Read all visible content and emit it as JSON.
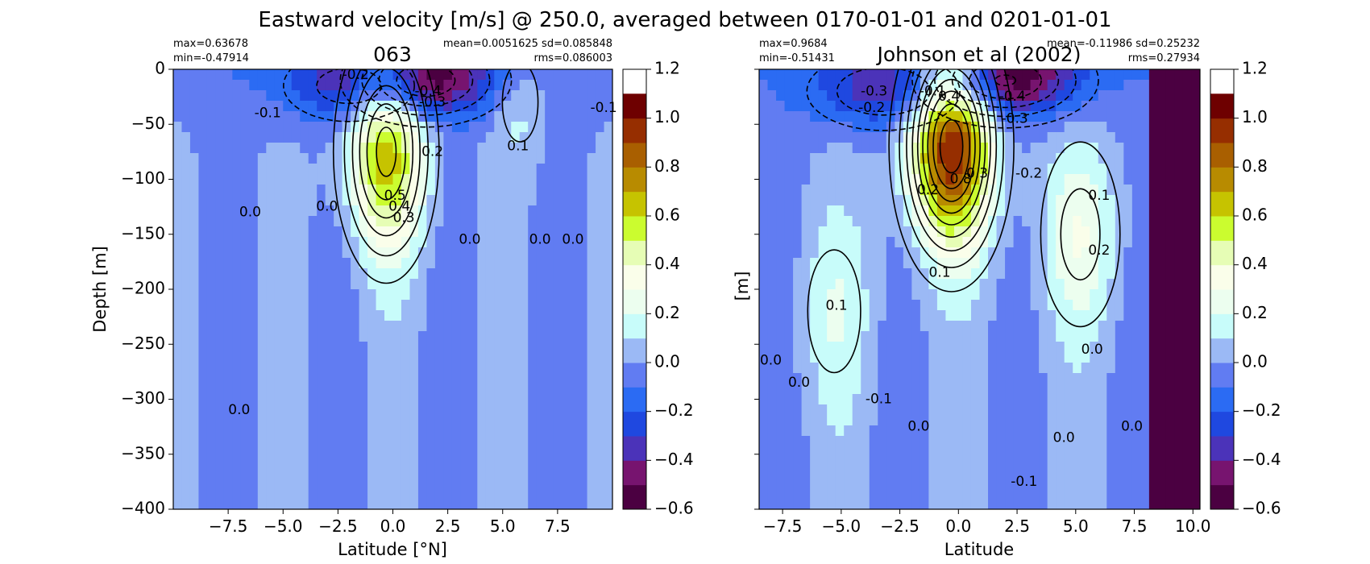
{
  "figure": {
    "title": "Eastward velocity [m/s] @ 250.0, averaged between 0170-01-01 and 0201-01-01"
  },
  "chart_data": [
    {
      "type": "heatmap",
      "title": "063",
      "xlabel": "Latitude [°N]",
      "ylabel": "Depth [m]",
      "xlim": [
        -10,
        10
      ],
      "ylim": [
        -400,
        0
      ],
      "xticks": [
        -7.5,
        -5.0,
        -2.5,
        0.0,
        2.5,
        5.0,
        7.5
      ],
      "xtick_labels": [
        "−7.5",
        "−5.0",
        "−2.5",
        "0.0",
        "2.5",
        "5.0",
        "7.5"
      ],
      "yticks": [
        0,
        -50,
        -100,
        -150,
        -200,
        -250,
        -300,
        -350,
        -400
      ],
      "ytick_labels": [
        "0",
        "−50",
        "−100",
        "−150",
        "−200",
        "−250",
        "−300",
        "−350",
        "−400"
      ],
      "stats_left": [
        "max=0.63678",
        "min=-0.47914"
      ],
      "stats_right": [
        "mean=0.0051625 sd=0.085848",
        "rms=0.086003"
      ],
      "features": [
        {
          "type": "jet",
          "lat": -0.3,
          "depth": -75,
          "max": 0.64
        },
        {
          "type": "jet",
          "lat": 5.8,
          "depth": -30,
          "max": 0.15
        },
        {
          "type": "westward",
          "lat": 1.5,
          "depth": -10,
          "min": -0.48
        },
        {
          "type": "westward",
          "lat": -2.0,
          "depth": -15,
          "min": -0.25
        }
      ],
      "contour_labels": [
        {
          "text": "-0.2",
          "lat": -1.7,
          "depth": -5
        },
        {
          "text": "-0.4",
          "lat": 1.6,
          "depth": -20
        },
        {
          "text": "-0.3",
          "lat": 1.8,
          "depth": -30
        },
        {
          "text": "-0.1",
          "lat": -5.7,
          "depth": -40
        },
        {
          "text": "-0.1",
          "lat": 9.6,
          "depth": -35
        },
        {
          "text": "0.1",
          "lat": 5.7,
          "depth": -70
        },
        {
          "text": "0.2",
          "lat": 1.8,
          "depth": -75
        },
        {
          "text": "0.5",
          "lat": 0.1,
          "depth": -115
        },
        {
          "text": "0.4",
          "lat": 0.3,
          "depth": -125
        },
        {
          "text": "0.3",
          "lat": 0.5,
          "depth": -135
        },
        {
          "text": "0.0",
          "lat": -3.0,
          "depth": -125
        },
        {
          "text": "0.0",
          "lat": -6.5,
          "depth": -130
        },
        {
          "text": "0.0",
          "lat": 3.5,
          "depth": -155
        },
        {
          "text": "0.0",
          "lat": 6.7,
          "depth": -155
        },
        {
          "text": "0.0",
          "lat": 8.2,
          "depth": -155
        },
        {
          "text": "0.0",
          "lat": -7.0,
          "depth": -310
        }
      ]
    },
    {
      "type": "heatmap",
      "title": "Johnson et al (2002)",
      "xlabel": "Latitude",
      "ylabel": "[m]",
      "xlim": [
        -8.5,
        10.3
      ],
      "ylim": [
        -400,
        0
      ],
      "xticks": [
        -7.5,
        -5.0,
        -2.5,
        0.0,
        2.5,
        5.0,
        7.5,
        10.0
      ],
      "xtick_labels": [
        "−7.5",
        "−5.0",
        "−2.5",
        "0.0",
        "2.5",
        "5.0",
        "7.5",
        "10.0"
      ],
      "yticks": [
        0,
        -50,
        -100,
        -150,
        -200,
        -250,
        -300,
        -350,
        -400
      ],
      "ytick_labels": [],
      "no_data_lat_min": 8.2,
      "stats_left": [
        "max=0.9684",
        "min=-0.51431"
      ],
      "stats_right": [
        "mean=-0.11986 sd=0.25232",
        "rms=0.27934"
      ],
      "features": [
        {
          "type": "jet",
          "lat": -0.3,
          "depth": -70,
          "max": 0.97
        },
        {
          "type": "jet",
          "lat": 5.2,
          "depth": -150,
          "max": 0.25
        },
        {
          "type": "jet",
          "lat": -5.3,
          "depth": -220,
          "max": 0.15
        },
        {
          "type": "westward",
          "lat": 2.0,
          "depth": -10,
          "min": -0.51
        },
        {
          "type": "westward",
          "lat": -3.2,
          "depth": -20,
          "min": -0.3
        }
      ],
      "contour_labels": [
        {
          "text": "-0.3",
          "lat": -3.6,
          "depth": -20
        },
        {
          "text": "-0.2",
          "lat": -3.7,
          "depth": -35
        },
        {
          "text": "-0.1",
          "lat": -1.1,
          "depth": -20
        },
        {
          "text": "0.4",
          "lat": -0.4,
          "depth": -25
        },
        {
          "text": "-0.4",
          "lat": 2.3,
          "depth": -25
        },
        {
          "text": "-0.3",
          "lat": 2.4,
          "depth": -45
        },
        {
          "text": "0.8",
          "lat": 0.1,
          "depth": -100
        },
        {
          "text": "0.3",
          "lat": 0.8,
          "depth": -95
        },
        {
          "text": "0.2",
          "lat": -1.3,
          "depth": -110
        },
        {
          "text": "-0.2",
          "lat": 3.0,
          "depth": -95
        },
        {
          "text": "0.1",
          "lat": 6.0,
          "depth": -115
        },
        {
          "text": "0.2",
          "lat": 6.0,
          "depth": -165
        },
        {
          "text": "0.1",
          "lat": -0.8,
          "depth": -185
        },
        {
          "text": "0.1",
          "lat": -5.2,
          "depth": -215
        },
        {
          "text": "0.0",
          "lat": -8.0,
          "depth": -265
        },
        {
          "text": "0.0",
          "lat": -6.8,
          "depth": -285
        },
        {
          "text": "0.0",
          "lat": 5.7,
          "depth": -255
        },
        {
          "text": "-0.1",
          "lat": -3.4,
          "depth": -300
        },
        {
          "text": "0.0",
          "lat": -1.7,
          "depth": -325
        },
        {
          "text": "0.0",
          "lat": 4.5,
          "depth": -335
        },
        {
          "text": "0.0",
          "lat": 7.4,
          "depth": -325
        },
        {
          "text": "-0.1",
          "lat": 2.8,
          "depth": -375
        }
      ]
    }
  ],
  "colorbar": {
    "ticks": [
      1.2,
      1.0,
      0.8,
      0.6,
      0.4,
      0.2,
      0.0,
      -0.2,
      -0.4,
      -0.6
    ],
    "tick_labels": [
      "1.2",
      "1.0",
      "0.8",
      "0.6",
      "0.4",
      "0.2",
      "0.0",
      "−0.2",
      "−0.4",
      "−0.6"
    ],
    "levels": [
      -0.6,
      -0.5,
      -0.4,
      -0.3,
      -0.2,
      -0.1,
      0.0,
      0.1,
      0.2,
      0.3,
      0.4,
      0.5,
      0.6,
      0.7,
      0.8,
      0.9,
      1.0,
      1.1,
      1.2
    ],
    "colors": [
      "#4b0041",
      "#77146f",
      "#4b33b9",
      "#1f48e0",
      "#2b6bf3",
      "#617cf2",
      "#9bb9f5",
      "#c8fcfa",
      "#ecfeef",
      "#fafeea",
      "#e6fdb5",
      "#cbfc2f",
      "#c6c300",
      "#b88b00",
      "#a95f00",
      "#962e00",
      "#6e0000"
    ]
  }
}
